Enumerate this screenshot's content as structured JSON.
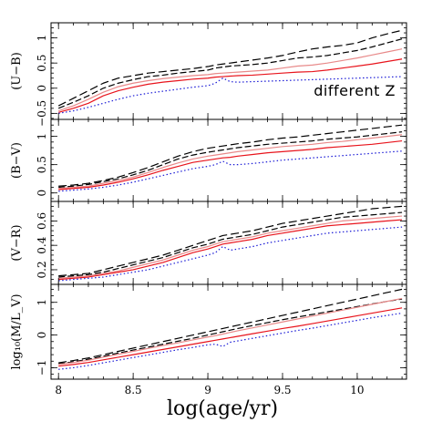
{
  "chart_data": {
    "type": "line",
    "xlabel": "log(age/yr)",
    "xlim": [
      7.95,
      10.33
    ],
    "xticks": [
      8,
      8.5,
      9,
      9.5,
      10
    ],
    "xtick_labels": [
      "8",
      "8.5",
      "9",
      "9.5",
      "10"
    ],
    "x": [
      8.0,
      8.1,
      8.2,
      8.3,
      8.4,
      8.5,
      8.6,
      8.7,
      8.8,
      8.9,
      9.0,
      9.05,
      9.1,
      9.15,
      9.2,
      9.3,
      9.4,
      9.5,
      9.6,
      9.7,
      9.8,
      9.9,
      10.0,
      10.1,
      10.2,
      10.3
    ],
    "series_styles": [
      {
        "color": "#000000",
        "dash": "9,4",
        "width": 0.8
      },
      {
        "color": "#000000",
        "dash": "7,3",
        "width": 1.4
      },
      {
        "color": "#e88a8a",
        "dash": "",
        "width": 1.0
      },
      {
        "color": "#e8141c",
        "dash": "",
        "width": 1.2
      },
      {
        "color": "#1a1ad6",
        "dash": "1.5,2.5",
        "width": 1.4
      }
    ],
    "panels": [
      {
        "ylabel": "(U−B)",
        "ylim": [
          -0.62,
          1.3
        ],
        "yticks": [
          -0.5,
          0,
          0.5,
          1
        ],
        "ytick_labels": [
          "−0.5",
          "0",
          "0.5",
          "1"
        ],
        "annotation": "different Z",
        "series": [
          {
            "values": [
              -0.35,
              -0.2,
              -0.05,
              0.1,
              0.2,
              0.25,
              0.3,
              0.33,
              0.36,
              0.39,
              0.43,
              0.46,
              0.48,
              0.5,
              0.52,
              0.56,
              0.6,
              0.65,
              0.72,
              0.78,
              0.82,
              0.85,
              0.9,
              1.0,
              1.08,
              1.15
            ]
          },
          {
            "values": [
              -0.4,
              -0.28,
              -0.15,
              0.0,
              0.1,
              0.17,
              0.23,
              0.26,
              0.3,
              0.33,
              0.36,
              0.4,
              0.42,
              0.44,
              0.45,
              0.47,
              0.5,
              0.55,
              0.6,
              0.62,
              0.65,
              0.7,
              0.75,
              0.82,
              0.9,
              0.98
            ]
          },
          {
            "values": [
              -0.45,
              -0.35,
              -0.22,
              -0.08,
              0.03,
              0.1,
              0.15,
              0.19,
              0.22,
              0.25,
              0.27,
              0.29,
              0.3,
              0.31,
              0.32,
              0.34,
              0.36,
              0.4,
              0.44,
              0.46,
              0.5,
              0.55,
              0.6,
              0.66,
              0.72,
              0.78
            ]
          },
          {
            "values": [
              -0.48,
              -0.4,
              -0.3,
              -0.15,
              -0.05,
              0.02,
              0.08,
              0.12,
              0.15,
              0.18,
              0.2,
              0.22,
              0.23,
              0.24,
              0.25,
              0.26,
              0.28,
              0.3,
              0.32,
              0.33,
              0.36,
              0.4,
              0.44,
              0.48,
              0.53,
              0.58
            ]
          },
          {
            "values": [
              -0.5,
              -0.45,
              -0.38,
              -0.3,
              -0.22,
              -0.15,
              -0.1,
              -0.06,
              -0.02,
              0.02,
              0.05,
              0.1,
              0.2,
              0.13,
              0.12,
              0.13,
              0.14,
              0.15,
              0.16,
              0.17,
              0.18,
              0.19,
              0.2,
              0.21,
              0.22,
              0.23
            ]
          }
        ]
      },
      {
        "ylabel": "(B−V)",
        "ylim": [
          -0.15,
          1.3
        ],
        "yticks": [
          0,
          0.5,
          1
        ],
        "ytick_labels": [
          "0",
          "0.5",
          "1"
        ],
        "annotation": "",
        "series": [
          {
            "values": [
              0.12,
              0.14,
              0.17,
              0.22,
              0.28,
              0.36,
              0.45,
              0.55,
              0.65,
              0.73,
              0.79,
              0.81,
              0.83,
              0.85,
              0.87,
              0.9,
              0.94,
              0.97,
              0.99,
              1.02,
              1.05,
              1.08,
              1.11,
              1.14,
              1.17,
              1.2
            ]
          },
          {
            "values": [
              0.1,
              0.12,
              0.15,
              0.2,
              0.25,
              0.32,
              0.4,
              0.5,
              0.6,
              0.67,
              0.72,
              0.74,
              0.76,
              0.78,
              0.8,
              0.83,
              0.86,
              0.88,
              0.9,
              0.92,
              0.95,
              0.97,
              0.99,
              1.02,
              1.05,
              1.08
            ]
          },
          {
            "values": [
              0.08,
              0.1,
              0.12,
              0.17,
              0.22,
              0.28,
              0.36,
              0.45,
              0.53,
              0.6,
              0.65,
              0.67,
              0.69,
              0.71,
              0.73,
              0.76,
              0.79,
              0.82,
              0.84,
              0.86,
              0.89,
              0.91,
              0.94,
              0.97,
              1.0,
              1.03
            ]
          },
          {
            "values": [
              0.06,
              0.08,
              0.1,
              0.14,
              0.19,
              0.25,
              0.32,
              0.4,
              0.47,
              0.54,
              0.58,
              0.6,
              0.62,
              0.63,
              0.65,
              0.68,
              0.71,
              0.73,
              0.75,
              0.77,
              0.8,
              0.82,
              0.84,
              0.86,
              0.89,
              0.92
            ]
          },
          {
            "values": [
              0.03,
              0.05,
              0.07,
              0.1,
              0.14,
              0.19,
              0.25,
              0.31,
              0.37,
              0.43,
              0.47,
              0.5,
              0.56,
              0.5,
              0.5,
              0.52,
              0.55,
              0.58,
              0.6,
              0.62,
              0.64,
              0.66,
              0.68,
              0.7,
              0.72,
              0.74
            ]
          }
        ]
      },
      {
        "ylabel": "(V−R)",
        "ylim": [
          0.08,
          0.76
        ],
        "yticks": [
          0.2,
          0.4,
          0.6
        ],
        "ytick_labels": [
          "0.2",
          "0.4",
          "0.6"
        ],
        "annotation": "",
        "series": [
          {
            "values": [
              0.15,
              0.16,
              0.17,
              0.2,
              0.23,
              0.26,
              0.29,
              0.32,
              0.36,
              0.4,
              0.44,
              0.46,
              0.48,
              0.49,
              0.5,
              0.52,
              0.55,
              0.58,
              0.6,
              0.62,
              0.64,
              0.66,
              0.68,
              0.7,
              0.71,
              0.72
            ]
          },
          {
            "values": [
              0.14,
              0.15,
              0.16,
              0.18,
              0.21,
              0.24,
              0.27,
              0.3,
              0.34,
              0.38,
              0.41,
              0.43,
              0.45,
              0.46,
              0.47,
              0.49,
              0.52,
              0.55,
              0.57,
              0.59,
              0.61,
              0.63,
              0.64,
              0.65,
              0.66,
              0.67
            ]
          },
          {
            "values": [
              0.13,
              0.14,
              0.15,
              0.17,
              0.19,
              0.22,
              0.25,
              0.28,
              0.32,
              0.36,
              0.39,
              0.41,
              0.43,
              0.44,
              0.45,
              0.47,
              0.5,
              0.52,
              0.54,
              0.56,
              0.58,
              0.6,
              0.61,
              0.62,
              0.63,
              0.64
            ]
          },
          {
            "values": [
              0.12,
              0.13,
              0.14,
              0.16,
              0.18,
              0.2,
              0.23,
              0.26,
              0.3,
              0.34,
              0.37,
              0.39,
              0.41,
              0.42,
              0.43,
              0.45,
              0.48,
              0.5,
              0.52,
              0.54,
              0.56,
              0.57,
              0.58,
              0.59,
              0.6,
              0.61
            ]
          },
          {
            "values": [
              0.11,
              0.12,
              0.13,
              0.14,
              0.16,
              0.18,
              0.2,
              0.23,
              0.26,
              0.29,
              0.32,
              0.34,
              0.39,
              0.36,
              0.37,
              0.39,
              0.42,
              0.44,
              0.46,
              0.48,
              0.5,
              0.51,
              0.52,
              0.53,
              0.54,
              0.55
            ]
          }
        ]
      },
      {
        "ylabel": "log₁₀(M/L_V)",
        "ylim": [
          -1.35,
          1.55
        ],
        "yticks": [
          -1,
          0,
          1
        ],
        "ytick_labels": [
          "−1",
          "0",
          "1"
        ],
        "annotation": "",
        "series": [
          {
            "values": [
              -0.85,
              -0.78,
              -0.7,
              -0.6,
              -0.5,
              -0.4,
              -0.3,
              -0.2,
              -0.1,
              0.0,
              0.1,
              0.15,
              0.2,
              0.25,
              0.3,
              0.4,
              0.5,
              0.6,
              0.7,
              0.8,
              0.9,
              1.0,
              1.1,
              1.2,
              1.3,
              1.4
            ]
          },
          {
            "values": [
              -0.88,
              -0.82,
              -0.74,
              -0.65,
              -0.55,
              -0.46,
              -0.37,
              -0.28,
              -0.19,
              -0.1,
              0.0,
              0.05,
              0.1,
              0.15,
              0.2,
              0.29,
              0.38,
              0.47,
              0.55,
              0.63,
              0.71,
              0.79,
              0.87,
              0.95,
              1.03,
              1.1
            ]
          },
          {
            "values": [
              -0.9,
              -0.84,
              -0.77,
              -0.68,
              -0.59,
              -0.5,
              -0.41,
              -0.32,
              -0.24,
              -0.15,
              -0.06,
              -0.02,
              0.03,
              0.08,
              0.13,
              0.22,
              0.31,
              0.4,
              0.49,
              0.58,
              0.67,
              0.76,
              0.85,
              0.94,
              1.03,
              1.12
            ]
          },
          {
            "values": [
              -0.95,
              -0.9,
              -0.84,
              -0.76,
              -0.68,
              -0.6,
              -0.52,
              -0.44,
              -0.36,
              -0.28,
              -0.2,
              -0.16,
              -0.12,
              -0.08,
              -0.04,
              0.04,
              0.12,
              0.2,
              0.27,
              0.35,
              0.43,
              0.51,
              0.59,
              0.67,
              0.75,
              0.83
            ]
          },
          {
            "values": [
              -1.05,
              -1.0,
              -0.93,
              -0.85,
              -0.77,
              -0.69,
              -0.61,
              -0.53,
              -0.45,
              -0.38,
              -0.3,
              -0.28,
              -0.35,
              -0.22,
              -0.18,
              -0.1,
              -0.02,
              0.06,
              0.14,
              0.21,
              0.29,
              0.37,
              0.45,
              0.53,
              0.6,
              0.67
            ]
          }
        ]
      }
    ]
  }
}
